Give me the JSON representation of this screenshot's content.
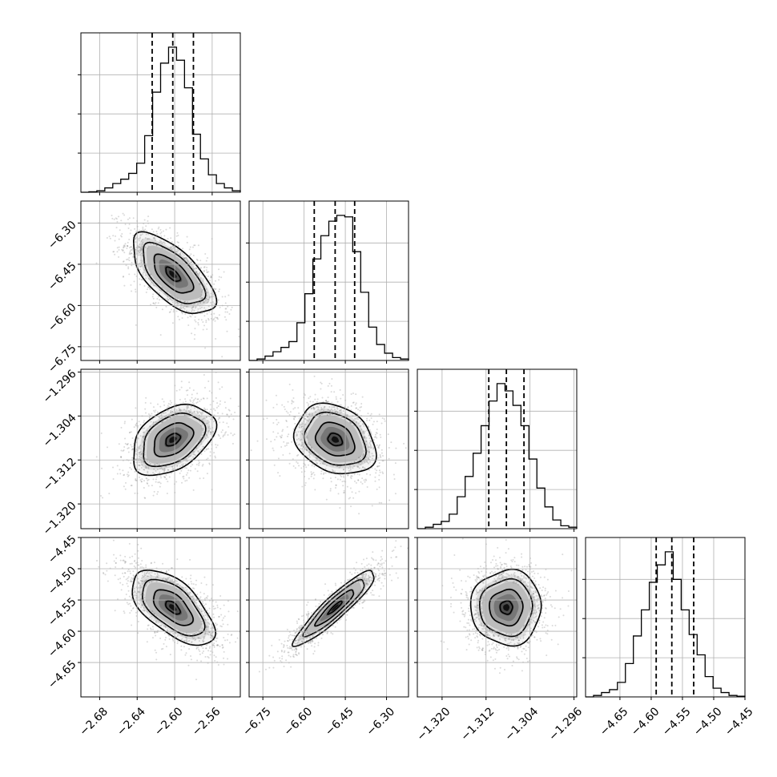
{
  "chart_data": {
    "type": "corner",
    "title": "",
    "grid": true,
    "n_params": 4,
    "params": [
      {
        "range": [
          -2.7,
          -2.53
        ],
        "ticks": [
          -2.68,
          -2.64,
          -2.6,
          -2.56
        ],
        "tick_labels": [
          "−2.68",
          "−2.64",
          "−2.60",
          "−2.56"
        ],
        "quantiles": [
          -2.624,
          -2.602,
          -2.58
        ],
        "hist": [
          0,
          0.003,
          0.01,
          0.03,
          0.06,
          0.09,
          0.13,
          0.2,
          0.39,
          0.69,
          0.89,
          1.0,
          0.91,
          0.72,
          0.4,
          0.23,
          0.12,
          0.06,
          0.03,
          0.01
        ]
      },
      {
        "range": [
          -6.8,
          -6.22
        ],
        "ticks": [
          -6.75,
          -6.6,
          -6.45,
          -6.3
        ],
        "tick_labels": [
          "−6.75",
          "−6.60",
          "−6.45",
          "−6.30"
        ],
        "quantiles": [
          -6.563,
          -6.487,
          -6.416
        ],
        "hist": [
          0,
          0.01,
          0.03,
          0.06,
          0.09,
          0.13,
          0.26,
          0.46,
          0.7,
          0.86,
          0.96,
          1.0,
          0.99,
          0.75,
          0.47,
          0.23,
          0.11,
          0.05,
          0.02,
          0.01
        ]
      },
      {
        "range": [
          -1.3245,
          -1.2955
        ],
        "ticks": [
          -1.32,
          -1.312,
          -1.304,
          -1.296
        ],
        "tick_labels": [
          "−1.320",
          "−1.312",
          "−1.304",
          "−1.296"
        ],
        "quantiles": [
          -1.3115,
          -1.3083,
          -1.3051
        ],
        "hist": [
          0,
          0.01,
          0.03,
          0.05,
          0.1,
          0.22,
          0.36,
          0.52,
          0.71,
          0.88,
          1.0,
          0.95,
          0.85,
          0.71,
          0.48,
          0.28,
          0.15,
          0.06,
          0.02,
          0.01
        ]
      },
      {
        "range": [
          -4.705,
          -4.45
        ],
        "ticks": [
          -4.65,
          -4.6,
          -4.55,
          -4.5,
          -4.45
        ],
        "tick_labels": [
          "−4.65",
          "−4.60",
          "−4.55",
          "−4.50",
          "−4.45"
        ],
        "quantiles": [
          -4.592,
          -4.567,
          -4.532
        ],
        "hist": [
          0,
          0.01,
          0.03,
          0.05,
          0.1,
          0.23,
          0.42,
          0.6,
          0.79,
          0.91,
          1.0,
          0.81,
          0.6,
          0.43,
          0.29,
          0.14,
          0.06,
          0.03,
          0.01,
          0.005
        ]
      }
    ],
    "pairs": [
      {
        "row": 1,
        "col": 0,
        "mean": [
          -2.602,
          -6.487
        ],
        "corr": -0.65
      },
      {
        "row": 2,
        "col": 0,
        "mean": [
          -2.602,
          -1.3083
        ],
        "corr": 0.4
      },
      {
        "row": 2,
        "col": 1,
        "mean": [
          -6.487,
          -1.3083
        ],
        "corr": -0.25
      },
      {
        "row": 3,
        "col": 0,
        "mean": [
          -2.602,
          -4.562
        ],
        "corr": -0.6
      },
      {
        "row": 3,
        "col": 1,
        "mean": [
          -6.487,
          -4.562
        ],
        "corr": 0.92
      },
      {
        "row": 3,
        "col": 2,
        "mean": [
          -1.3083,
          -4.562
        ],
        "corr": 0.0
      }
    ]
  }
}
